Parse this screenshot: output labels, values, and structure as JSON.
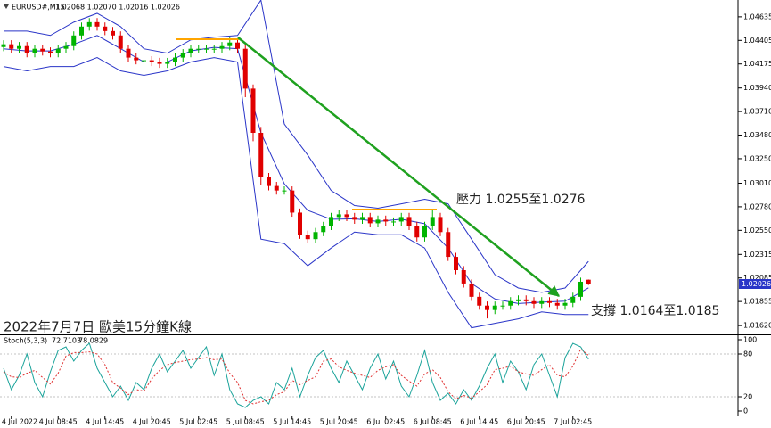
{
  "header": {
    "symbol": "EURUSD#,M15",
    "quote": "1.02068 1.02070 1.02016 1.02026"
  },
  "chart_data": [
    {
      "type": "candlestick",
      "title": "2022年7月7日 歐美15分鐘K線",
      "annotations": [
        "壓力 1.0255至1.0276",
        "支撐 1.0164至1.0185"
      ],
      "up_color": "#00b400",
      "down_color": "#e00000",
      "categories": [
        null,
        "4 Jul 2022",
        null,
        null,
        null,
        null,
        null,
        "4 Jul 08:45",
        null,
        null,
        null,
        null,
        null,
        "4 Jul 14:45",
        null,
        null,
        null,
        null,
        null,
        "4 Jul 20:45",
        null,
        null,
        null,
        null,
        null,
        "5 Jul 02:45",
        null,
        null,
        null,
        null,
        null,
        "5 Jul 08:45",
        null,
        null,
        null,
        null,
        null,
        "5 Jul 14:45",
        null,
        null,
        null,
        null,
        null,
        "5 Jul 20:45",
        null,
        null,
        null,
        null,
        null,
        "6 Jul 02:45",
        null,
        null,
        null,
        null,
        null,
        "6 Jul 08:45",
        null,
        null,
        null,
        null,
        null,
        "6 Jul 14:45",
        null,
        null,
        null,
        null,
        null,
        "6 Jul 20:45",
        null,
        null,
        null,
        null,
        null,
        "7 Jul 02:45",
        null,
        null
      ],
      "open": [
        1.0434,
        1.04367,
        1.04323,
        1.04349,
        1.0428,
        1.04323,
        1.04297,
        1.0428,
        1.04323,
        1.04349,
        1.04453,
        1.0454,
        1.04583,
        1.0454,
        1.04496,
        1.04453,
        1.04323,
        1.04237,
        1.04211,
        1.04211,
        1.04194,
        1.04176,
        1.04194,
        1.04237,
        1.0428,
        1.04323,
        1.04323,
        1.04323,
        1.04323,
        1.04349,
        1.04384,
        1.04323,
        1.03934,
        1.03502,
        1.03069,
        1.02983,
        1.02939,
        1.02939,
        1.02723,
        1.02507,
        1.02464,
        1.02533,
        1.02593,
        1.0268,
        1.02706,
        1.0268,
        1.02654,
        1.0268,
        1.02619,
        1.02654,
        1.02636,
        1.02636,
        1.0268,
        1.02593,
        1.02481,
        1.02593,
        1.0268,
        1.02533,
        1.02291,
        1.02161,
        1.02031,
        1.01901,
        1.01815,
        1.01772,
        1.01815,
        1.01815,
        1.01858,
        1.01875,
        1.01858,
        1.01832,
        1.01858,
        1.01841,
        1.01815,
        1.01841,
        1.01901,
        1.02068
      ],
      "high": [
        1.04407,
        1.04407,
        1.04389,
        1.04389,
        1.04363,
        1.04363,
        1.04337,
        1.04363,
        1.04389,
        1.04493,
        1.0458,
        1.04623,
        1.04623,
        1.0458,
        1.04536,
        1.04493,
        1.04363,
        1.04277,
        1.04251,
        1.04251,
        1.04234,
        1.04234,
        1.04277,
        1.0432,
        1.04363,
        1.04363,
        1.04363,
        1.04363,
        1.04389,
        1.0444,
        1.04424,
        1.04363,
        1.03974,
        1.0356,
        1.0311,
        1.03023,
        1.02979,
        1.02979,
        1.02763,
        1.02547,
        1.02573,
        1.02633,
        1.0272,
        1.02746,
        1.02746,
        1.0272,
        1.0272,
        1.0272,
        1.02694,
        1.02694,
        1.02676,
        1.0272,
        1.0272,
        1.02633,
        1.02633,
        1.0276,
        1.0272,
        1.02573,
        1.02331,
        1.02201,
        1.02071,
        1.01941,
        1.01855,
        1.01855,
        1.01855,
        1.01898,
        1.01915,
        1.01915,
        1.01898,
        1.01898,
        1.01898,
        1.01881,
        1.01881,
        1.01941,
        1.02088,
        1.0207
      ],
      "low": [
        1.043,
        1.04283,
        1.04283,
        1.0424,
        1.0424,
        1.04257,
        1.0424,
        1.0424,
        1.04283,
        1.04309,
        1.04413,
        1.045,
        1.045,
        1.04456,
        1.04413,
        1.04283,
        1.04197,
        1.04171,
        1.04171,
        1.04154,
        1.04136,
        1.04136,
        1.04154,
        1.04197,
        1.0424,
        1.04283,
        1.04283,
        1.04283,
        1.04283,
        1.04309,
        1.04283,
        1.0385,
        1.0342,
        1.0299,
        1.0294,
        1.02899,
        1.02899,
        1.02683,
        1.02467,
        1.02424,
        1.02424,
        1.02493,
        1.02553,
        1.0264,
        1.0264,
        1.02614,
        1.02614,
        1.02579,
        1.02579,
        1.02596,
        1.02596,
        1.02596,
        1.02553,
        1.02441,
        1.02441,
        1.02553,
        1.02493,
        1.02251,
        1.02121,
        1.01991,
        1.01861,
        1.01775,
        1.0169,
        1.01732,
        1.01775,
        1.01775,
        1.01818,
        1.01818,
        1.01792,
        1.01792,
        1.01801,
        1.01775,
        1.01775,
        1.01801,
        1.01861,
        1.02016
      ],
      "close": [
        1.04367,
        1.04323,
        1.04349,
        1.0428,
        1.04323,
        1.04297,
        1.0428,
        1.04323,
        1.04349,
        1.04453,
        1.0454,
        1.04583,
        1.0454,
        1.04496,
        1.04453,
        1.04323,
        1.04237,
        1.04211,
        1.04211,
        1.04194,
        1.04176,
        1.04194,
        1.04237,
        1.0428,
        1.04323,
        1.04323,
        1.04323,
        1.04323,
        1.04349,
        1.04384,
        1.04323,
        1.03934,
        1.03502,
        1.03069,
        1.02983,
        1.02939,
        1.02939,
        1.02723,
        1.02507,
        1.02464,
        1.02533,
        1.02593,
        1.0268,
        1.02706,
        1.0268,
        1.02654,
        1.0268,
        1.02619,
        1.02654,
        1.02636,
        1.02636,
        1.0268,
        1.02593,
        1.02481,
        1.02593,
        1.0268,
        1.02533,
        1.02291,
        1.02161,
        1.02031,
        1.01901,
        1.01815,
        1.01772,
        1.01815,
        1.01815,
        1.01858,
        1.01875,
        1.01858,
        1.01832,
        1.01858,
        1.01841,
        1.01815,
        1.01841,
        1.01901,
        1.02048,
        1.02026
      ],
      "overlays": [
        {
          "color": "#2a35c8",
          "x": [
            0,
            3,
            6,
            9,
            12,
            15,
            18,
            21,
            24,
            27,
            30,
            33,
            36,
            39,
            42,
            45,
            48,
            51,
            54,
            57,
            60,
            63,
            66,
            69,
            72,
            75
          ],
          "values": [
            1.04496,
            1.04496,
            1.04453,
            1.04583,
            1.04669,
            1.0454,
            1.04323,
            1.0428,
            1.0441,
            1.04436,
            1.04453,
            1.04799,
            1.03588,
            1.03285,
            1.02939,
            1.02792,
            1.02766,
            1.02809,
            1.02853,
            1.02809,
            1.02464,
            1.02117,
            1.01987,
            1.01944,
            1.01987,
            1.02247
          ]
        },
        {
          "color": "#2a35c8",
          "x": [
            0,
            3,
            6,
            9,
            12,
            15,
            18,
            21,
            24,
            27,
            30,
            33,
            36,
            39,
            42,
            45,
            48,
            51,
            54,
            57,
            60,
            63,
            66,
            69,
            72,
            75
          ],
          "values": [
            1.04323,
            1.04302,
            1.04302,
            1.04367,
            1.04453,
            1.04324,
            1.04194,
            1.04194,
            1.04302,
            1.04337,
            1.04324,
            1.03502,
            1.03004,
            1.02745,
            1.02658,
            1.02663,
            1.02637,
            1.02658,
            1.02615,
            1.02377,
            1.02031,
            1.0188,
            1.01836,
            1.01849,
            1.01858,
            1.01988
          ]
        },
        {
          "color": "#2a35c8",
          "x": [
            0,
            3,
            6,
            9,
            12,
            15,
            18,
            21,
            24,
            27,
            30,
            33,
            36,
            39,
            42,
            45,
            48,
            51,
            54,
            57,
            60,
            63,
            66,
            69,
            72,
            75
          ],
          "values": [
            1.0415,
            1.04107,
            1.0415,
            1.0415,
            1.04237,
            1.04107,
            1.04064,
            1.04107,
            1.04194,
            1.04237,
            1.04194,
            1.02464,
            1.0242,
            1.02204,
            1.02377,
            1.02533,
            1.02507,
            1.02507,
            1.02377,
            1.01944,
            1.01598,
            1.01642,
            1.01685,
            1.01754,
            1.01728,
            1.01728
          ]
        }
      ],
      "ylim": [
        1.01534,
        1.04782
      ],
      "yticks": [
        1.04635,
        1.04405,
        1.04175,
        {
          "value": 1.0394,
          "label": "1.03940"
        },
        {
          "value": 1.0371,
          "label": "1.03710"
        },
        {
          "value": 1.0348,
          "label": "1.03480"
        },
        {
          "value": 1.0325,
          "label": "1.03250"
        },
        {
          "value": 1.0301,
          "label": "1.03010"
        },
        {
          "value": 1.0278,
          "label": "1.02780"
        },
        {
          "value": 1.0255,
          "label": "1.02550"
        },
        1.02315,
        1.02085,
        1.01855,
        {
          "value": 1.0162,
          "label": "1.01620"
        }
      ]
    },
    {
      "type": "line",
      "title": "Stoch(5,3,3)",
      "series": [
        {
          "color": "#1aa39a",
          "values": [
            60,
            30,
            50,
            80,
            40,
            20,
            55,
            85,
            90,
            70,
            85,
            95,
            60,
            40,
            20,
            35,
            15,
            40,
            30,
            60,
            80,
            55,
            70,
            85,
            60,
            75,
            90,
            50,
            80,
            30,
            10,
            5,
            15,
            20,
            10,
            40,
            30,
            60,
            20,
            50,
            75,
            85,
            60,
            40,
            70,
            50,
            30,
            60,
            80,
            45,
            70,
            35,
            20,
            50,
            85,
            40,
            15,
            25,
            10,
            30,
            15,
            35,
            60,
            80,
            40,
            70,
            55,
            30,
            65,
            80,
            50,
            20,
            75,
            95,
            90,
            72.7103
          ]
        },
        {
          "color": "#e03030",
          "dashed": true,
          "values": [
            55,
            48,
            47,
            53,
            57,
            47,
            38,
            53,
            77,
            82,
            82,
            83,
            80,
            65,
            40,
            32,
            23,
            30,
            28,
            45,
            57,
            65,
            68,
            70,
            72,
            73,
            75,
            72,
            73,
            53,
            40,
            15,
            10,
            13,
            15,
            23,
            27,
            43,
            37,
            43,
            48,
            70,
            73,
            62,
            57,
            53,
            50,
            47,
            57,
            62,
            65,
            50,
            42,
            35,
            52,
            58,
            47,
            27,
            17,
            22,
            18,
            27,
            37,
            58,
            60,
            63,
            55,
            52,
            50,
            58,
            65,
            50,
            48,
            63,
            87,
            78.0829
          ]
        }
      ],
      "ylim": [
        -6.25,
        106.25
      ],
      "yticks": [
        0,
        20,
        80,
        100
      ],
      "levels": [
        20,
        80
      ]
    }
  ]
}
